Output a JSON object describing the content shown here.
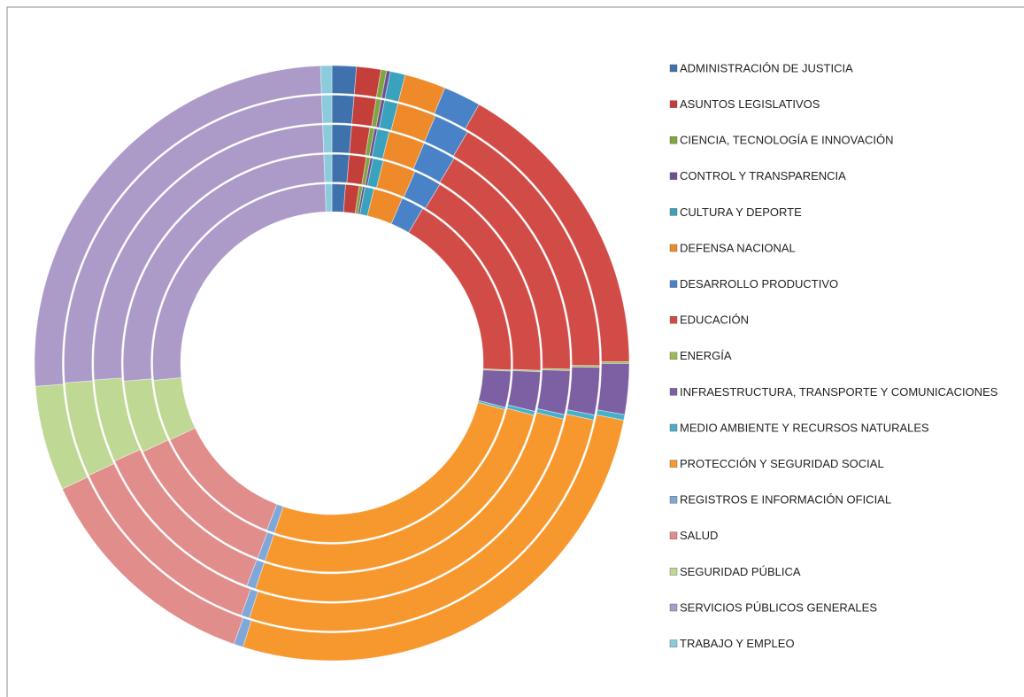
{
  "chart_data": {
    "type": "doughnut",
    "categories": [
      "ADMINISTRACIÓN DE JUSTICIA",
      "ASUNTOS LEGISLATIVOS",
      "CIENCIA, TECNOLOGÍA E INNOVACIÓN",
      "CONTROL Y TRANSPARENCIA",
      "CULTURA Y DEPORTE",
      "DEFENSA NACIONAL",
      "DESARROLLO PRODUCTIVO",
      "EDUCACIÓN",
      "ENERGÍA",
      "INFRAESTRUCTURA, TRANSPORTE Y COMUNICACIONES",
      "MEDIO AMBIENTE Y RECURSOS NATURALES",
      "PROTECCIÓN Y SEGURIDAD SOCIAL",
      "REGISTROS E INFORMACIÓN OFICIAL",
      "SALUD",
      "SEGURIDAD PÚBLICA",
      "SERVICIOS PÚBLICOS GENERALES",
      "TRABAJO Y EMPLEO"
    ],
    "colors": [
      "#3f72ad",
      "#c43e3a",
      "#7ea53e",
      "#6d4f94",
      "#3aa2bd",
      "#ee8a2a",
      "#4a82c8",
      "#d24c47",
      "#9bbb59",
      "#7d5fa3",
      "#46b0cc",
      "#f7982f",
      "#7fa7d8",
      "#e08d8b",
      "#bfd894",
      "#ac9ac8",
      "#8ccbdc"
    ],
    "series": [
      {
        "values": [
          1.2,
          1.2,
          0.3,
          0.2,
          0.8,
          2.6,
          2.0,
          16.8,
          0.1,
          3.2,
          0.2,
          25.5,
          0.7,
          11.8,
          5.4,
          25.4,
          0.6
        ]
      },
      {
        "values": [
          1.3,
          1.3,
          0.3,
          0.2,
          0.8,
          2.5,
          2.1,
          16.6,
          0.1,
          3.0,
          0.3,
          25.7,
          0.6,
          12.0,
          5.5,
          25.3,
          0.6
        ]
      },
      {
        "values": [
          1.3,
          1.2,
          0.3,
          0.2,
          0.8,
          2.4,
          2.2,
          16.5,
          0.1,
          2.9,
          0.3,
          25.9,
          0.6,
          12.2,
          5.5,
          25.0,
          0.6
        ]
      },
      {
        "values": [
          1.3,
          1.3,
          0.3,
          0.2,
          0.8,
          2.3,
          2.1,
          16.4,
          0.1,
          2.8,
          0.3,
          26.1,
          0.5,
          12.4,
          5.6,
          25.1,
          0.6
        ]
      },
      {
        "values": [
          1.3,
          1.3,
          0.3,
          0.2,
          0.8,
          2.2,
          2.0,
          16.4,
          0.1,
          2.7,
          0.3,
          26.3,
          0.5,
          12.5,
          5.6,
          25.2,
          0.6
        ]
      }
    ]
  }
}
